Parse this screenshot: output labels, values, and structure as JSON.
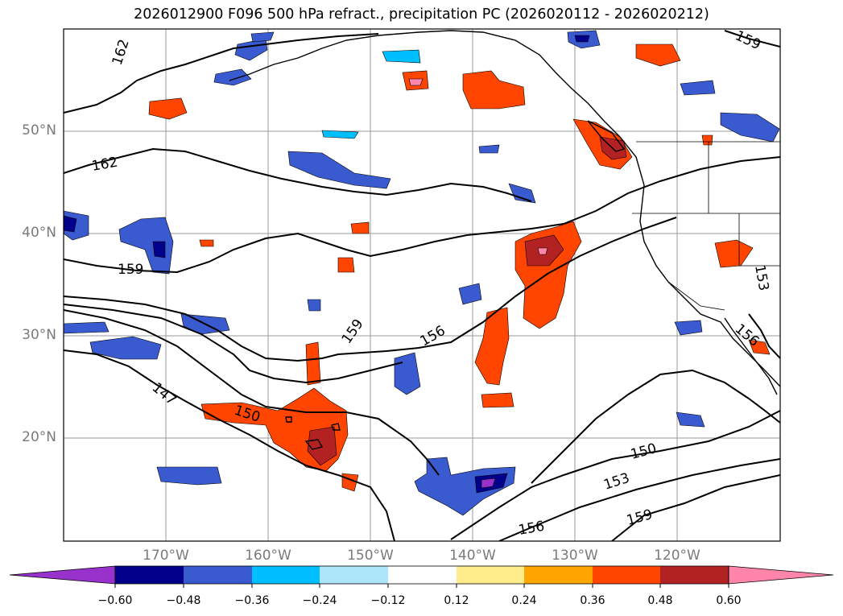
{
  "title": "2026012900 F096 500 hPa refract., precipitation PC (2026020112 - 2026020212)",
  "lat_labels": [
    "50°N",
    "40°N",
    "30°N",
    "20°N"
  ],
  "lon_labels": [
    "170°W",
    "160°W",
    "150°W",
    "140°W",
    "130°W",
    "120°W"
  ],
  "contour_labels": [
    "162",
    "162",
    "159",
    "159",
    "159",
    "156",
    "156",
    "153",
    "153",
    "150",
    "150",
    "147",
    "156",
    "159"
  ],
  "colorbar": {
    "levels": [
      "−0.60",
      "−0.48",
      "−0.36",
      "−0.24",
      "−0.12",
      "0.12",
      "0.24",
      "0.36",
      "0.48",
      "0.60"
    ],
    "colors": [
      "#9932cc",
      "#00008b",
      "#3a5bd0",
      "#00bfff",
      "#ade5fb",
      "#ffffff",
      "#ffec8b",
      "#ffa500",
      "#ff4500",
      "#b22222",
      "#ff85aa"
    ]
  },
  "colors": {
    "positive_orange": "#ff4500",
    "positive_dark": "#b22222",
    "positive_yellow": "#ffa500",
    "negative_blue": "#3a5bd0",
    "negative_light": "#00bfff",
    "negative_navy": "#00008b",
    "negative_purple": "#9932cc"
  }
}
